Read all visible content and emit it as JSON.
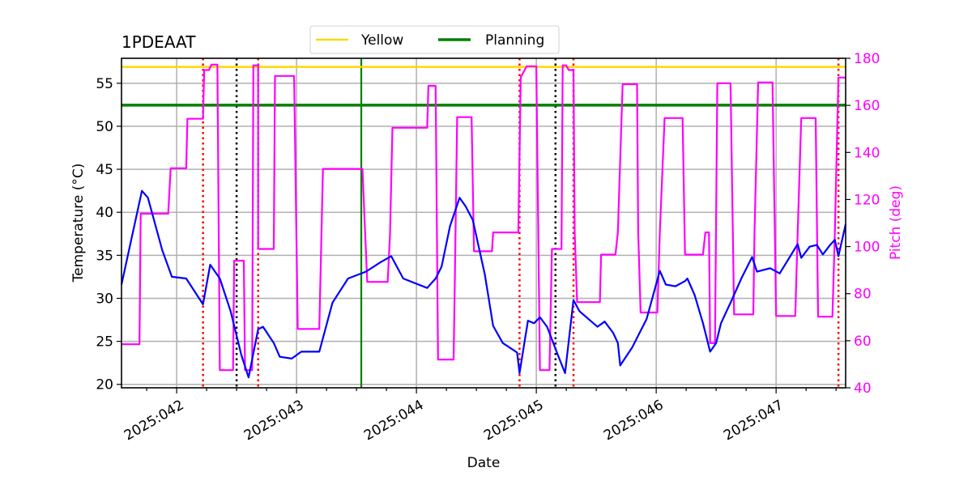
{
  "chart_data": {
    "type": "line",
    "title": "1PDEAAT",
    "xlabel": "Date",
    "ylabel": "Temperature ($^\\circ$C)",
    "ylabel_display": "Temperature (°C)",
    "y2label": "Pitch (deg)",
    "xlim": [
      41.54,
      47.58
    ],
    "ylim": [
      19.6,
      57.9
    ],
    "y2lim": [
      40,
      180
    ],
    "grid": true,
    "legend_position": "top-center",
    "x_ticks": [
      {
        "value": 42,
        "label": "2025:042"
      },
      {
        "value": 43,
        "label": "2025:043"
      },
      {
        "value": 44,
        "label": "2025:044"
      },
      {
        "value": 45,
        "label": "2025:045"
      },
      {
        "value": 46,
        "label": "2025:046"
      },
      {
        "value": 47,
        "label": "2025:047"
      }
    ],
    "y_ticks": [
      20,
      25,
      30,
      35,
      40,
      45,
      50,
      55
    ],
    "y2_ticks": [
      40,
      60,
      80,
      100,
      120,
      140,
      160,
      180
    ],
    "legend": [
      {
        "name": "Yellow",
        "color": "#ffd700"
      },
      {
        "name": "Planning",
        "color": "#008000"
      }
    ],
    "hlines": [
      {
        "name": "Yellow",
        "value": 56.9,
        "color": "#ffd700"
      },
      {
        "name": "Planning",
        "value": 52.45,
        "color": "#008000"
      }
    ],
    "vlines": [
      {
        "value": 42.22,
        "color": "#ff0000",
        "style": "dotted"
      },
      {
        "value": 42.68,
        "color": "#ff0000",
        "style": "dotted"
      },
      {
        "value": 44.86,
        "color": "#ff0000",
        "style": "dotted"
      },
      {
        "value": 45.31,
        "color": "#ff0000",
        "style": "dotted"
      },
      {
        "value": 47.52,
        "color": "#ff0000",
        "style": "dotted"
      },
      {
        "value": 42.5,
        "color": "#000000",
        "style": "dotted"
      },
      {
        "value": 45.16,
        "color": "#000000",
        "style": "dotted"
      },
      {
        "value": 43.54,
        "color": "#008000",
        "style": "solid"
      }
    ],
    "series": [
      {
        "name": "Temperature",
        "axis": "left",
        "color": "#0000ff",
        "x": [
          41.54,
          41.71,
          41.76,
          41.88,
          41.96,
          42.08,
          42.22,
          42.28,
          42.36,
          42.45,
          42.54,
          42.6,
          42.68,
          42.72,
          42.81,
          42.86,
          42.96,
          43.04,
          43.12,
          43.19,
          43.3,
          43.43,
          43.58,
          43.7,
          43.79,
          43.89,
          44.09,
          44.16,
          44.21,
          44.28,
          44.36,
          44.41,
          44.47,
          44.57,
          44.64,
          44.72,
          44.84,
          44.86,
          44.93,
          44.98,
          45.03,
          45.09,
          45.18,
          45.24,
          45.31,
          45.36,
          45.51,
          45.57,
          45.64,
          45.68,
          45.7,
          45.8,
          45.92,
          46.03,
          46.08,
          46.16,
          46.24,
          46.26,
          46.32,
          46.39,
          46.45,
          46.5,
          46.54,
          46.63,
          46.71,
          46.8,
          46.84,
          46.95,
          47.03,
          47.18,
          47.21,
          47.28,
          47.34,
          47.39,
          47.45,
          47.49,
          47.52,
          47.58
        ],
        "y": [
          31.6,
          42.5,
          41.7,
          35.6,
          32.5,
          32.3,
          29.3,
          33.9,
          32.3,
          28.5,
          23.4,
          20.8,
          26.4,
          26.7,
          24.8,
          23.2,
          23.0,
          23.8,
          23.8,
          23.8,
          29.5,
          32.3,
          33.1,
          34.2,
          34.9,
          32.3,
          31.2,
          32.3,
          33.7,
          38.4,
          41.7,
          40.7,
          39.1,
          32.8,
          26.8,
          24.8,
          23.7,
          21.3,
          27.4,
          27.1,
          27.8,
          26.7,
          23.4,
          21.3,
          29.8,
          28.5,
          26.7,
          27.3,
          26.0,
          24.8,
          22.2,
          24.3,
          27.6,
          33.2,
          31.6,
          31.4,
          32.0,
          32.3,
          30.4,
          27.1,
          23.8,
          24.8,
          27.1,
          29.8,
          32.3,
          34.8,
          33.1,
          33.5,
          32.9,
          36.3,
          34.7,
          36.0,
          36.2,
          35.1,
          36.2,
          36.8,
          34.9,
          38.6
        ]
      },
      {
        "name": "Pitch",
        "axis": "right",
        "color": "#ff00ff",
        "x": [
          41.54,
          41.69,
          41.7,
          41.93,
          41.95,
          42.08,
          42.09,
          42.22,
          42.23,
          42.27,
          42.29,
          42.34,
          42.36,
          42.47,
          42.48,
          42.56,
          42.57,
          42.63,
          42.64,
          42.68,
          42.68,
          42.81,
          42.82,
          42.98,
          43.01,
          43.19,
          43.22,
          43.55,
          43.57,
          43.59,
          43.76,
          43.78,
          43.8,
          44.09,
          44.1,
          44.16,
          44.18,
          44.31,
          44.32,
          44.34,
          44.46,
          44.48,
          44.63,
          44.64,
          44.85,
          44.87,
          44.92,
          45.0,
          45.03,
          45.11,
          45.13,
          45.21,
          45.22,
          45.25,
          45.27,
          45.31,
          45.32,
          45.34,
          45.53,
          45.54,
          45.66,
          45.68,
          45.72,
          45.84,
          45.85,
          45.87,
          46.01,
          46.03,
          46.07,
          46.22,
          46.24,
          46.39,
          46.41,
          46.44,
          46.45,
          46.49,
          46.51,
          46.62,
          46.65,
          46.81,
          46.82,
          46.85,
          46.97,
          47.0,
          47.16,
          47.18,
          47.21,
          47.33,
          47.35,
          47.47,
          47.49,
          47.52,
          47.58
        ],
        "y": [
          58.5,
          58.5,
          114,
          114,
          133.3,
          133.3,
          154.3,
          154.3,
          175,
          175,
          177.3,
          177.3,
          47.5,
          47.5,
          94,
          94,
          47.5,
          47.5,
          177,
          177,
          99,
          99,
          172.5,
          172.5,
          65,
          65,
          133,
          133,
          108,
          85,
          85,
          105,
          150.5,
          150.5,
          168.3,
          168.3,
          52,
          52,
          85,
          155,
          155,
          98,
          98,
          106,
          106,
          172,
          176.6,
          176.6,
          47.5,
          47.5,
          99,
          99,
          177,
          177,
          175,
          175,
          106,
          76.4,
          76.4,
          96.6,
          96.6,
          106,
          169,
          169,
          106,
          72,
          72,
          106,
          154.6,
          154.6,
          96.6,
          96.6,
          106,
          106,
          59,
          59,
          169.4,
          169.4,
          71.2,
          71.2,
          106,
          169.7,
          169.7,
          70.5,
          70.5,
          106,
          154.6,
          154.6,
          70.2,
          70.2,
          106,
          171.8,
          171.8
        ]
      }
    ]
  }
}
